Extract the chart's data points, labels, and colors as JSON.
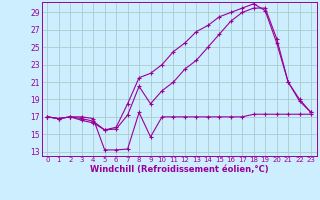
{
  "background_color": "#cceeff",
  "grid_color": "#aacccc",
  "line_color": "#990099",
  "xlabel": "Windchill (Refroidissement éolien,°C)",
  "xlabel_color": "#990099",
  "ylabel_ticks": [
    13,
    15,
    17,
    19,
    21,
    23,
    25,
    27,
    29
  ],
  "xlim": [
    -0.5,
    23.5
  ],
  "ylim": [
    12.5,
    30.2
  ],
  "x_ticks": [
    0,
    1,
    2,
    3,
    4,
    5,
    6,
    7,
    8,
    9,
    10,
    11,
    12,
    13,
    14,
    15,
    16,
    17,
    18,
    19,
    20,
    21,
    22,
    23
  ],
  "series": [
    {
      "x": [
        0,
        1,
        2,
        3,
        4,
        5,
        6,
        7,
        8,
        9,
        10,
        11,
        12,
        13,
        14,
        15,
        16,
        17,
        18,
        19,
        20,
        21,
        22,
        23
      ],
      "y": [
        17.0,
        16.8,
        17.0,
        17.0,
        16.8,
        13.2,
        13.2,
        13.3,
        17.5,
        14.7,
        17.0,
        17.0,
        17.0,
        17.0,
        17.0,
        17.0,
        17.0,
        17.0,
        17.3,
        17.3,
        17.3,
        17.3,
        17.3,
        17.3
      ]
    },
    {
      "x": [
        0,
        1,
        2,
        3,
        4,
        5,
        6,
        7,
        8,
        9,
        10,
        11,
        12,
        13,
        14,
        15,
        16,
        17,
        18,
        19,
        20,
        21,
        22,
        23
      ],
      "y": [
        17.0,
        16.8,
        17.0,
        16.8,
        16.5,
        15.5,
        15.8,
        18.5,
        21.5,
        22.0,
        23.0,
        24.5,
        25.5,
        26.8,
        27.5,
        28.5,
        29.0,
        29.5,
        30.0,
        29.2,
        25.5,
        21.0,
        19.0,
        17.5
      ]
    },
    {
      "x": [
        0,
        1,
        2,
        3,
        4,
        5,
        6,
        7,
        8,
        9,
        10,
        11,
        12,
        13,
        14,
        15,
        16,
        17,
        18,
        19,
        20,
        21,
        22,
        23
      ],
      "y": [
        17.0,
        16.8,
        17.0,
        16.6,
        16.3,
        15.5,
        15.6,
        17.2,
        20.5,
        18.5,
        20.0,
        21.0,
        22.5,
        23.5,
        25.0,
        26.5,
        28.0,
        29.0,
        29.5,
        29.5,
        26.0,
        21.0,
        18.8,
        17.5
      ]
    }
  ]
}
